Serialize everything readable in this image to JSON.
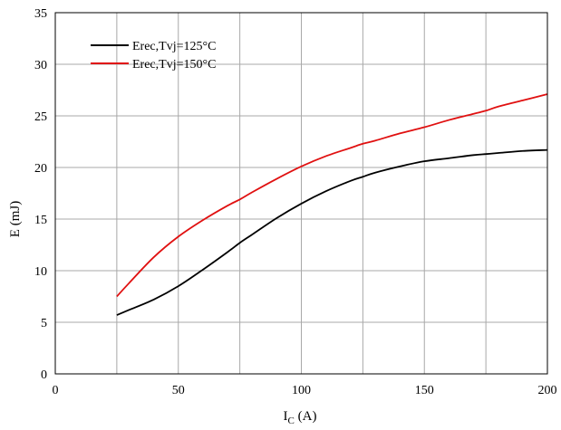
{
  "chart_data": {
    "type": "line",
    "title": "",
    "xlabel": {
      "main": "I",
      "sub": "C",
      "unit": " (A)"
    },
    "ylabel": "E (mJ)",
    "xlim": [
      0,
      200
    ],
    "ylim": [
      0,
      35
    ],
    "x_ticks": [
      "0",
      "50",
      "100",
      "150",
      "200"
    ],
    "y_ticks": [
      "0",
      "5",
      "10",
      "15",
      "20",
      "25",
      "30",
      "35"
    ],
    "grid": true,
    "legend_position": "top-left",
    "series": [
      {
        "name": "Erec,Tvj=125°C",
        "color": "#000000",
        "x": [
          25,
          30,
          40,
          50,
          60,
          70,
          75,
          80,
          90,
          100,
          110,
          120,
          125,
          130,
          140,
          150,
          160,
          170,
          175,
          180,
          190,
          200
        ],
        "y": [
          5.7,
          6.2,
          7.2,
          8.5,
          10.1,
          11.8,
          12.7,
          13.5,
          15.1,
          16.5,
          17.7,
          18.7,
          19.1,
          19.5,
          20.1,
          20.6,
          20.9,
          21.2,
          21.3,
          21.4,
          21.6,
          21.7
        ]
      },
      {
        "name": "Erec,Tvj=150°C",
        "color": "#e01010",
        "x": [
          25,
          30,
          40,
          50,
          60,
          70,
          75,
          80,
          90,
          100,
          110,
          120,
          125,
          130,
          140,
          150,
          160,
          170,
          175,
          180,
          190,
          200
        ],
        "y": [
          7.5,
          8.8,
          11.3,
          13.3,
          14.9,
          16.3,
          16.9,
          17.6,
          18.9,
          20.1,
          21.1,
          21.9,
          22.3,
          22.6,
          23.3,
          23.9,
          24.6,
          25.2,
          25.5,
          25.9,
          26.5,
          27.1
        ]
      }
    ]
  }
}
